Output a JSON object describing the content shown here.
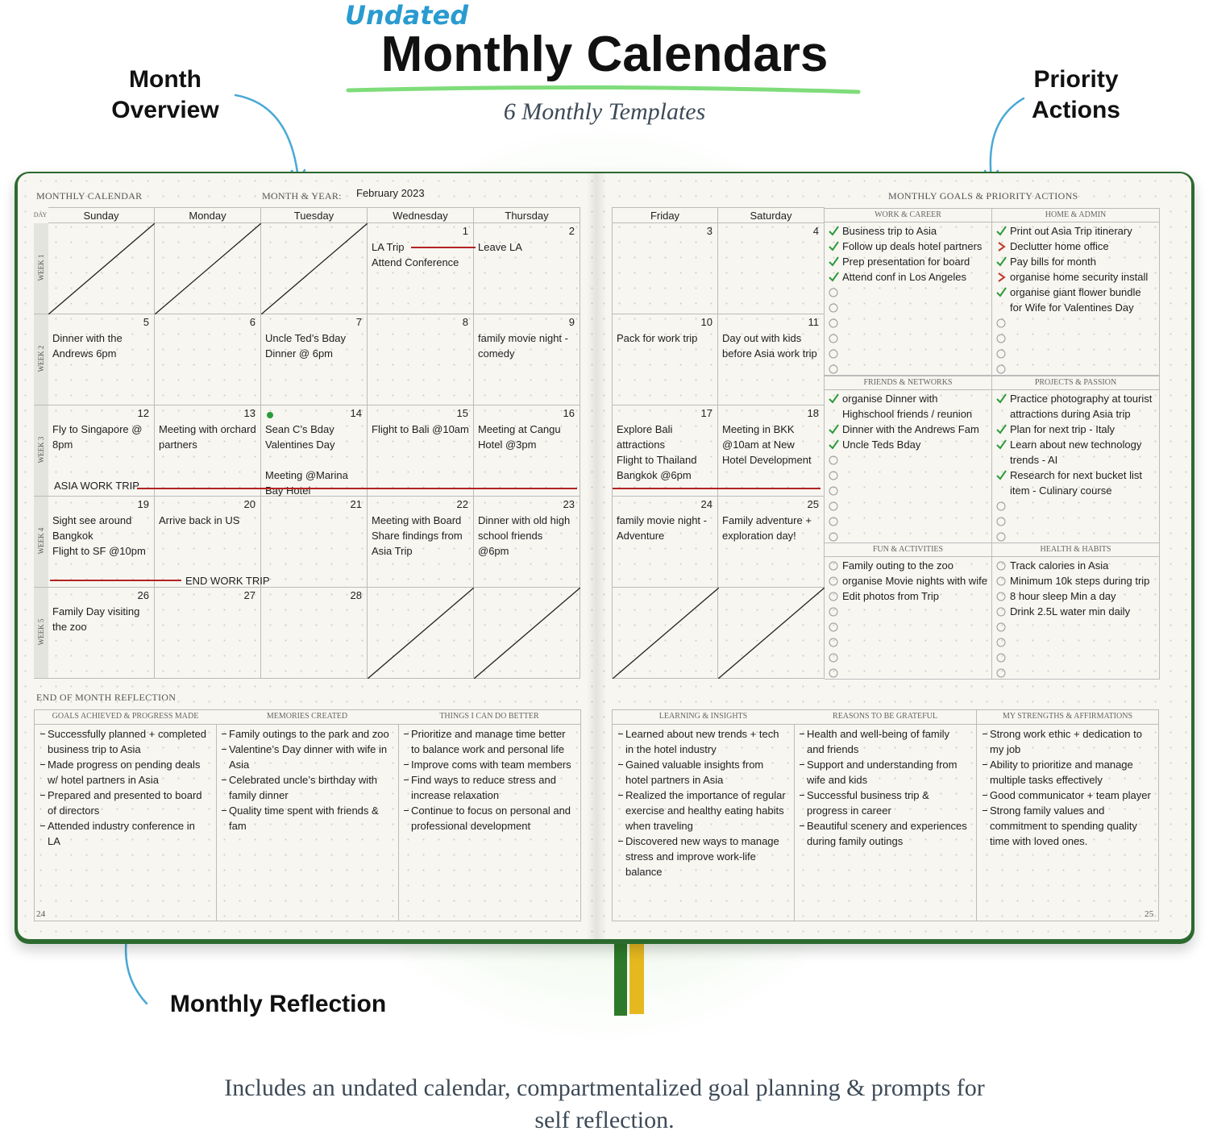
{
  "header": {
    "eyebrow": "Undated",
    "title": "Monthly Calendars",
    "subtitle": "6 Monthly Templates"
  },
  "callouts": {
    "month_overview": "Month Overview",
    "priority_actions": "Priority Actions",
    "monthly_reflection": "Monthly Reflection"
  },
  "left_page": {
    "heading": "MONTHLY CALENDAR",
    "month_year_label": "MONTH & YEAR:",
    "month_year": "February 2023",
    "day_label": "DAY",
    "page_number": 24
  },
  "right_page": {
    "heading": "MONTHLY GOALS & PRIORITY ACTIONS",
    "page_number": 25
  },
  "calendar": {
    "days": [
      "Sunday",
      "Monday",
      "Tuesday",
      "Wednesday",
      "Thursday",
      "Friday",
      "Saturday"
    ],
    "weeks": [
      {
        "label": "WEEK 1",
        "cells": [
          null,
          null,
          null,
          {
            "day": 1,
            "notes": [
              "LA Trip",
              "Attend Conference"
            ]
          },
          {
            "day": 2,
            "notes": [
              "Leave LA"
            ]
          },
          {
            "day": 3
          },
          {
            "day": 4
          }
        ]
      },
      {
        "label": "WEEK 2",
        "cells": [
          {
            "day": 5,
            "notes": [
              "Dinner with the Andrews 6pm"
            ]
          },
          {
            "day": 6
          },
          {
            "day": 7,
            "notes": [
              "Uncle Ted’s Bday Dinner @ 6pm"
            ]
          },
          {
            "day": 8
          },
          {
            "day": 9,
            "notes": [
              "family movie night - comedy"
            ]
          },
          {
            "day": 10,
            "notes": [
              "Pack for work trip"
            ]
          },
          {
            "day": 11,
            "notes": [
              "Day out with kids before Asia work trip"
            ]
          }
        ]
      },
      {
        "label": "WEEK 3",
        "banner": "ASIA WORK TRIP",
        "cells": [
          {
            "day": 12,
            "notes": [
              "Fly to Singapore @ 8pm"
            ]
          },
          {
            "day": 13,
            "notes": [
              "Meeting with orchard partners"
            ]
          },
          {
            "day": 14,
            "notes": [
              "Sean C’s Bday",
              "Valentines Day",
              "Meeting @Marina Bay Hotel"
            ]
          },
          {
            "day": 15,
            "notes": [
              "Flight to Bali @10am"
            ]
          },
          {
            "day": 16,
            "notes": [
              "Meeting at Cangu Hotel @3pm"
            ]
          },
          {
            "day": 17,
            "notes": [
              "Explore Bali attractions",
              "Flight to Thailand Bangkok @6pm"
            ]
          },
          {
            "day": 18,
            "notes": [
              "Meeting in BKK @10am at New Hotel Development"
            ]
          }
        ]
      },
      {
        "label": "WEEK 4",
        "banner": "END WORK TRIP",
        "cells": [
          {
            "day": 19,
            "notes": [
              "Sight see around Bangkok",
              "Flight to SF @10pm"
            ]
          },
          {
            "day": 20,
            "notes": [
              "Arrive back in US"
            ]
          },
          {
            "day": 21
          },
          {
            "day": 22,
            "notes": [
              "Meeting with Board Share findings from Asia Trip"
            ]
          },
          {
            "day": 23,
            "notes": [
              "Dinner with old high school friends @6pm"
            ]
          },
          {
            "day": 24,
            "notes": [
              "family movie night - Adventure"
            ]
          },
          {
            "day": 25,
            "notes": [
              "Family adventure + exploration day!"
            ]
          }
        ]
      },
      {
        "label": "WEEK 5",
        "cells": [
          {
            "day": 26,
            "notes": [
              "Family Day visiting the zoo"
            ]
          },
          {
            "day": 27
          },
          {
            "day": 28
          },
          null,
          null,
          null,
          null
        ]
      }
    ]
  },
  "goals": [
    {
      "title": "WORK & CAREER",
      "items": [
        {
          "text": "Business trip to Asia",
          "status": "done"
        },
        {
          "text": "Follow up deals hotel partners",
          "status": "done"
        },
        {
          "text": "Prep presentation for board",
          "status": "done"
        },
        {
          "text": "Attend conf in Los Angeles",
          "status": "done"
        }
      ]
    },
    {
      "title": "HOME & ADMIN",
      "items": [
        {
          "text": "Print out Asia Trip itinerary",
          "status": "done"
        },
        {
          "text": "Declutter home office",
          "status": "migrated"
        },
        {
          "text": "Pay bills for month",
          "status": "done"
        },
        {
          "text": "organise home security install",
          "status": "migrated"
        },
        {
          "text": "organise giant flower bundle for Wife for Valentines Day",
          "status": "done"
        }
      ]
    },
    {
      "title": "FRIENDS & NETWORKS",
      "items": [
        {
          "text": "organise Dinner with Highschool friends / reunion",
          "status": "done"
        },
        {
          "text": "Dinner with the Andrews Fam",
          "status": "done"
        },
        {
          "text": "Uncle Teds Bday",
          "status": "done"
        }
      ]
    },
    {
      "title": "PROJECTS & PASSION",
      "items": [
        {
          "text": "Practice photography at tourist attractions during Asia trip",
          "status": "done"
        },
        {
          "text": "Plan for next trip - Italy",
          "status": "done"
        },
        {
          "text": "Learn about new technology trends - AI",
          "status": "done"
        },
        {
          "text": "Research for next bucket list item - Culinary course",
          "status": "done"
        }
      ]
    },
    {
      "title": "FUN & ACTIVITIES",
      "items": [
        {
          "text": "Family outing to the zoo",
          "status": "open"
        },
        {
          "text": "organise Movie nights with wife",
          "status": "open"
        },
        {
          "text": "Edit photos from Trip",
          "status": "open"
        }
      ]
    },
    {
      "title": "HEALTH & HABITS",
      "items": [
        {
          "text": "Track calories in Asia",
          "status": "open"
        },
        {
          "text": "Minimum 10k steps during trip",
          "status": "open"
        },
        {
          "text": "8 hour sleep Min a day",
          "status": "open"
        },
        {
          "text": "Drink 2.5L water min daily",
          "status": "open"
        }
      ]
    }
  ],
  "reflection": {
    "title": "END OF MONTH REFLECTION",
    "boxes": [
      {
        "title": "GOALS ACHIEVED & PROGRESS MADE",
        "items": [
          "Successfully planned + completed business trip to Asia",
          "Made progress on pending deals w/ hotel partners in Asia",
          "Prepared and presented to board of directors",
          "Attended industry conference in LA"
        ]
      },
      {
        "title": "MEMORIES CREATED",
        "items": [
          "Family outings to the park and zoo",
          "Valentine’s Day dinner with wife in Asia",
          "Celebrated uncle’s birthday with family dinner",
          "Quality time spent with friends & fam"
        ]
      },
      {
        "title": "THINGS I CAN DO BETTER",
        "items": [
          "Prioritize and manage time better to balance work and personal life",
          "Improve coms with team members",
          "Find ways to reduce stress and increase relaxation",
          "Continue to focus on personal and professional development"
        ]
      },
      {
        "title": "LEARNING & INSIGHTS",
        "items": [
          "Learned about new trends + tech in the hotel industry",
          "Gained valuable insights from hotel partners in Asia",
          "Realized the importance of regular exercise and healthy eating habits when traveling",
          "Discovered new ways to manage stress and improve work-life balance"
        ]
      },
      {
        "title": "REASONS TO BE GRATEFUL",
        "items": [
          "Health and well-being of family and friends",
          "Support and understanding from wife and kids",
          "Successful business trip & progress in career",
          "Beautiful scenery and experiences during family outings"
        ]
      },
      {
        "title": "MY STRENGTHS & AFFIRMATIONS",
        "items": [
          "Strong work ethic + dedication to my job",
          "Ability to prioritize and manage multiple tasks effectively",
          "Good communicator + team player",
          "Strong family values and commitment to spending quality time with loved ones."
        ]
      }
    ]
  },
  "footer": "Includes an undated calendar, compartmentalized goal planning & prompts for self reflection."
}
